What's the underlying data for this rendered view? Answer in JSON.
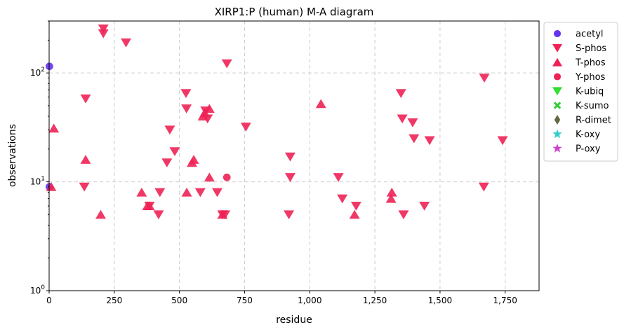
{
  "chart_data": {
    "type": "scatter",
    "title": "XIRP1:P (human) M-A diagram",
    "xlabel": "residue",
    "ylabel": "observations",
    "xlim": [
      0,
      1880
    ],
    "ylim": [
      1,
      300
    ],
    "yscale": "log",
    "x_ticks": [
      0,
      250,
      500,
      750,
      1000,
      1250,
      1500,
      1750
    ],
    "x_tick_labels": [
      "0",
      "250",
      "500",
      "750",
      "1,000",
      "1,250",
      "1,500",
      "1,750"
    ],
    "y_ticks": [
      1,
      10,
      100
    ],
    "y_tick_labels": [
      "10^0",
      "10^1",
      "10^2"
    ],
    "grid": true,
    "legend_position": "outside-right",
    "series": [
      {
        "name": "acetyl",
        "marker": "circle",
        "color": "#6633ee",
        "points": [
          [
            1,
            115
          ],
          [
            1,
            9
          ]
        ]
      },
      {
        "name": "S-phos",
        "marker": "triangle-down",
        "color": "#ee2255",
        "points": [
          [
            208,
            255
          ],
          [
            208,
            230
          ],
          [
            295,
            190
          ],
          [
            682,
            122
          ],
          [
            1670,
            90
          ],
          [
            525,
            65
          ],
          [
            1350,
            65
          ],
          [
            140,
            58
          ],
          [
            527,
            47
          ],
          [
            600,
            45
          ],
          [
            608,
            38
          ],
          [
            1355,
            38
          ],
          [
            1395,
            35
          ],
          [
            755,
            32
          ],
          [
            463,
            30
          ],
          [
            1400,
            25
          ],
          [
            1460,
            24
          ],
          [
            1740,
            24
          ],
          [
            482,
            19
          ],
          [
            925,
            17
          ],
          [
            452,
            15
          ],
          [
            925,
            11
          ],
          [
            1110,
            11
          ],
          [
            135,
            9
          ],
          [
            1668,
            9
          ],
          [
            425,
            8
          ],
          [
            580,
            8
          ],
          [
            645,
            8
          ],
          [
            1125,
            7
          ],
          [
            385,
            6
          ],
          [
            1178,
            6
          ],
          [
            1440,
            6
          ],
          [
            420,
            5
          ],
          [
            665,
            5
          ],
          [
            675,
            5
          ],
          [
            920,
            5
          ],
          [
            1360,
            5
          ]
        ]
      },
      {
        "name": "T-phos",
        "marker": "triangle-up",
        "color": "#ee2255",
        "points": [
          [
            1043,
            52
          ],
          [
            615,
            47
          ],
          [
            597,
            43
          ],
          [
            590,
            40
          ],
          [
            18,
            31
          ],
          [
            140,
            16
          ],
          [
            555,
            16
          ],
          [
            548,
            15
          ],
          [
            615,
            11
          ],
          [
            8,
            9
          ],
          [
            355,
            8
          ],
          [
            528,
            8
          ],
          [
            1315,
            8
          ],
          [
            1312,
            7
          ],
          [
            377,
            6
          ],
          [
            385,
            6
          ],
          [
            198,
            5
          ],
          [
            665,
            5
          ],
          [
            1172,
            5
          ]
        ]
      },
      {
        "name": "Y-phos",
        "marker": "circle",
        "color": "#ee2255",
        "points": [
          [
            682,
            11
          ]
        ]
      },
      {
        "name": "K-ubiq",
        "marker": "triangle-down",
        "color": "#33dd33",
        "points": []
      },
      {
        "name": "K-sumo",
        "marker": "x",
        "color": "#33cc33",
        "points": []
      },
      {
        "name": "R-dimet",
        "marker": "diamond",
        "color": "#666644",
        "points": []
      },
      {
        "name": "K-oxy",
        "marker": "star",
        "color": "#33cccc",
        "points": []
      },
      {
        "name": "P-oxy",
        "marker": "star",
        "color": "#cc44cc",
        "points": []
      }
    ]
  }
}
